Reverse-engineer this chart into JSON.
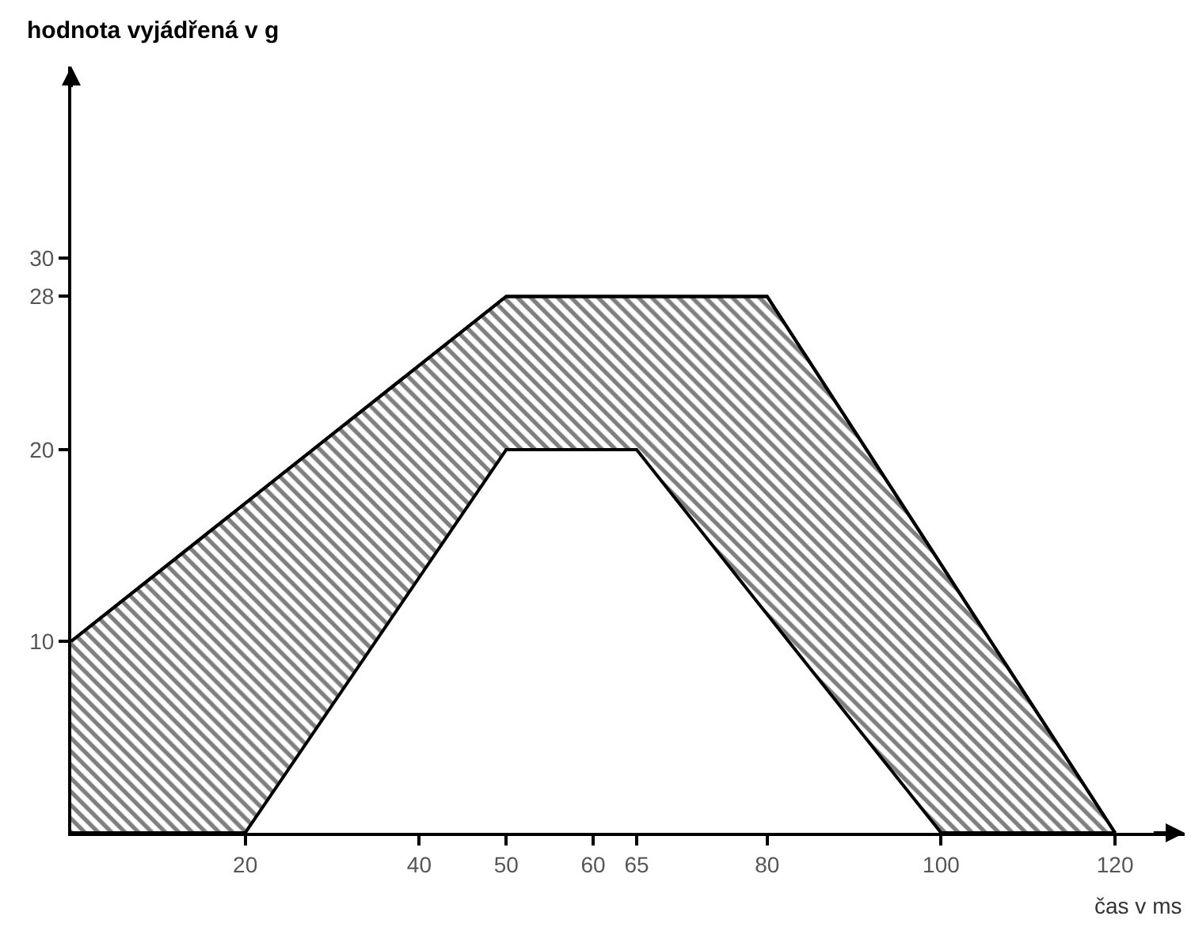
{
  "chart_data": {
    "type": "line",
    "ylabel": "hodnota vyjádřená v g",
    "xlabel": "čas v ms",
    "series": [
      {
        "color": "#000000",
        "x": [
          0,
          20,
          50,
          65,
          80,
          100,
          120
        ],
        "values": [
          10,
          17.2,
          28,
          28,
          28,
          14,
          0
        ],
        "upper": [
          10,
          17.2,
          28,
          28,
          28,
          14,
          0
        ],
        "lower": [
          0,
          0,
          20,
          20,
          11.4,
          0,
          0
        ]
      }
    ],
    "xlim": [
      0,
      128
    ],
    "ylim": [
      0,
      40
    ],
    "xticks": [
      20,
      40,
      50,
      60,
      65,
      80,
      100,
      120
    ],
    "yticks": [
      10,
      20,
      28,
      30
    ],
    "grid": false
  }
}
